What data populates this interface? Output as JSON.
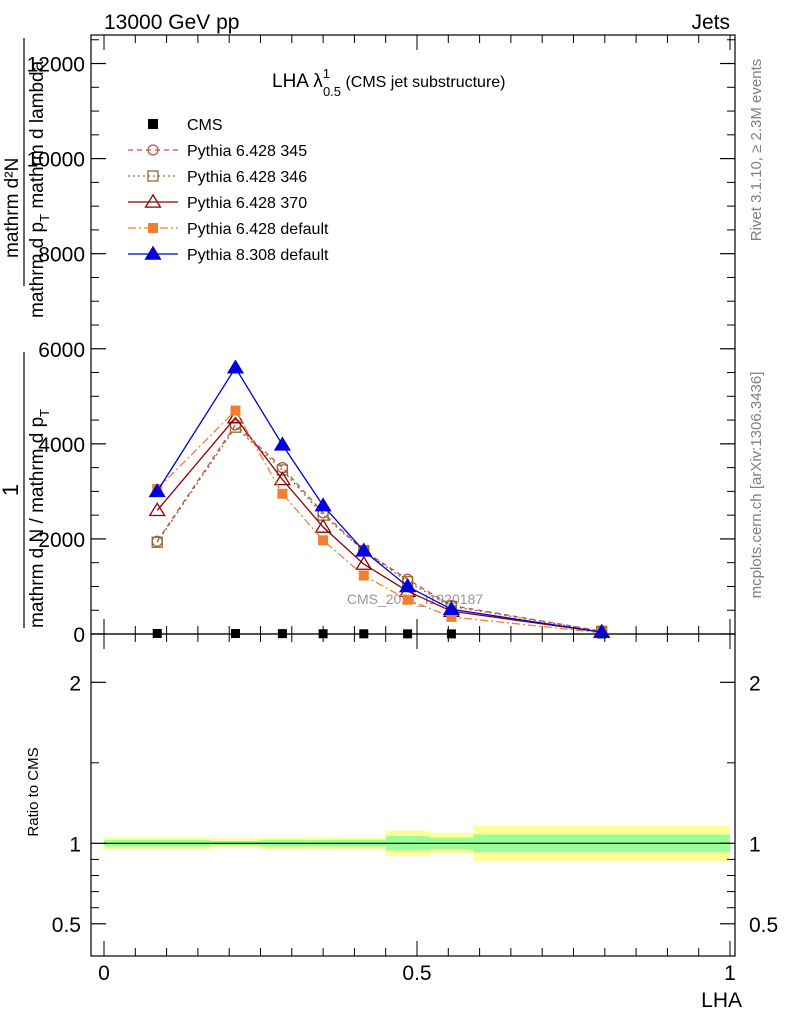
{
  "header": {
    "left": "13000 GeV pp",
    "right": "Jets"
  },
  "side_texts": {
    "rivet": "Rivet 3.1.10, ≥ 2.3M events",
    "mcplots": "mcplots.cern.ch [arXiv:1306.3436]"
  },
  "watermark": "CMS_2021_I1920187",
  "title": {
    "main": "LHA λ",
    "sup": "1",
    "sub": "0.5",
    "suffix": " (CMS jet substructure)"
  },
  "ylabel": {
    "num": "1",
    "den": "mathrm d N / mathrm d p",
    "den_sub": "T",
    "numerator2": "mathrm d²N",
    "denominator2": "mathrm d p",
    "den2_sub": "T",
    "den2_tail": " mathrm d lambda"
  },
  "ratio_ylabel": "Ratio to CMS",
  "xlabel": "LHA",
  "colors": {
    "cms": "#000000",
    "p345": "#c0504d",
    "p346": "#8b6f2e",
    "p370": "#8b0000",
    "pdef6": "#f08030",
    "p8": "#0000dd",
    "band_outer": "#ffff99",
    "band_inner": "#99ff99"
  },
  "chart_data": [
    {
      "type": "line",
      "panel": "main",
      "xlim": [
        0,
        1
      ],
      "ylim": [
        0,
        12600
      ],
      "yticks": [
        0,
        2000,
        4000,
        6000,
        8000,
        10000,
        12000
      ],
      "ytick_labels": [
        "0",
        "2000",
        "4000",
        "6000",
        "8000",
        "10000",
        "12000"
      ],
      "x": [
        0.085,
        0.21,
        0.285,
        0.35,
        0.415,
        0.485,
        0.555,
        0.795
      ],
      "series": [
        {
          "name": "CMS",
          "marker": "square-filled",
          "values": [
            10,
            10,
            8,
            5,
            4,
            3,
            2,
            0.5
          ]
        },
        {
          "name": "Pythia 6.428 345",
          "marker": "circle-open",
          "line": "dashed",
          "values": [
            1950,
            4400,
            3500,
            2550,
            1750,
            1150,
            600,
            60
          ]
        },
        {
          "name": "Pythia 6.428 346",
          "marker": "square-open",
          "line": "dotted",
          "values": [
            1930,
            4350,
            3450,
            2500,
            1750,
            1100,
            580,
            55
          ]
        },
        {
          "name": "Pythia 6.428 370",
          "marker": "triangle-open",
          "line": "solid",
          "values": [
            2600,
            4550,
            3250,
            2250,
            1470,
            900,
            480,
            40
          ]
        },
        {
          "name": "Pythia 6.428 default",
          "marker": "square-filled",
          "line": "dashdot",
          "values": [
            3050,
            4700,
            2950,
            1970,
            1230,
            720,
            360,
            25
          ]
        },
        {
          "name": "Pythia 8.308 default",
          "marker": "triangle-filled",
          "line": "solid",
          "values": [
            3000,
            5600,
            3980,
            2700,
            1750,
            1000,
            520,
            40
          ]
        }
      ]
    },
    {
      "type": "area",
      "panel": "ratio",
      "xlim": [
        0,
        1
      ],
      "ylim": [
        0.3,
        2.3
      ],
      "yticks": [
        0.5,
        1,
        2
      ],
      "ytick_labels": [
        "0.5",
        "1",
        "2"
      ],
      "xticks": [
        0,
        0.5,
        1
      ],
      "xtick_labels": [
        "0",
        "0.5",
        "1"
      ],
      "bins": [
        [
          0,
          0.17
        ],
        [
          0.17,
          0.25
        ],
        [
          0.25,
          0.32
        ],
        [
          0.32,
          0.38
        ],
        [
          0.38,
          0.45
        ],
        [
          0.45,
          0.52
        ],
        [
          0.52,
          0.59
        ],
        [
          0.59,
          1.0
        ]
      ],
      "outer_band": [
        [
          0.96,
          1.04
        ],
        [
          0.97,
          1.03
        ],
        [
          0.965,
          1.035
        ],
        [
          0.96,
          1.04
        ],
        [
          0.965,
          1.035
        ],
        [
          0.92,
          1.08
        ],
        [
          0.935,
          1.065
        ],
        [
          0.89,
          1.11
        ]
      ],
      "inner_band": [
        [
          0.98,
          1.02
        ],
        [
          0.985,
          1.015
        ],
        [
          0.98,
          1.02
        ],
        [
          0.98,
          1.02
        ],
        [
          0.98,
          1.02
        ],
        [
          0.955,
          1.045
        ],
        [
          0.965,
          1.035
        ],
        [
          0.945,
          1.055
        ]
      ],
      "reference": 1
    }
  ]
}
